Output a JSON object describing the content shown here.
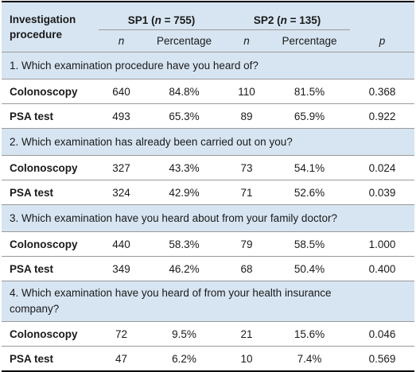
{
  "header": {
    "procedure_label": "Investigation procedure",
    "sp1_label": "SP1 (",
    "sp1_n": "n",
    "sp1_rest": " = 755)",
    "sp2_label": "SP2 (",
    "sp2_n": "n",
    "sp2_rest": " = 135)",
    "col_n": "n",
    "col_percentage": "Percentage",
    "col_p": "p"
  },
  "sections": [
    {
      "question": "1. Which examination procedure have you heard of?",
      "rows": [
        {
          "label": "Colonoscopy",
          "sp1_n": "640",
          "sp1_pct": "84.8%",
          "sp2_n": "110",
          "sp2_pct": "81.5%",
          "p": "0.368"
        },
        {
          "label": "PSA test",
          "sp1_n": "493",
          "sp1_pct": "65.3%",
          "sp2_n": "89",
          "sp2_pct": "65.9%",
          "p": "0.922"
        }
      ]
    },
    {
      "question": "2. Which examination has already been carried out on you?",
      "rows": [
        {
          "label": "Colonoscopy",
          "sp1_n": "327",
          "sp1_pct": "43.3%",
          "sp2_n": "73",
          "sp2_pct": "54.1%",
          "p": "0.024"
        },
        {
          "label": "PSA test",
          "sp1_n": "324",
          "sp1_pct": "42.9%",
          "sp2_n": "71",
          "sp2_pct": "52.6%",
          "p": "0.039"
        }
      ]
    },
    {
      "question": "3. Which examination have you heard about from your family doctor?",
      "rows": [
        {
          "label": "Colonoscopy",
          "sp1_n": "440",
          "sp1_pct": "58.3%",
          "sp2_n": "79",
          "sp2_pct": "58.5%",
          "p": "1.000"
        },
        {
          "label": "PSA test",
          "sp1_n": "349",
          "sp1_pct": "46.2%",
          "sp2_n": "68",
          "sp2_pct": "50.4%",
          "p": "0.400"
        }
      ]
    },
    {
      "question": "4. Which examination have you heard of from your health insurance company?",
      "rows": [
        {
          "label": "Colonoscopy",
          "sp1_n": "72",
          "sp1_pct": "9.5%",
          "sp2_n": "21",
          "sp2_pct": "15.6%",
          "p": "0.046"
        },
        {
          "label": "PSA test",
          "sp1_n": "47",
          "sp1_pct": "6.2%",
          "sp2_n": "10",
          "sp2_pct": "7.4%",
          "p": "0.569"
        }
      ]
    }
  ]
}
